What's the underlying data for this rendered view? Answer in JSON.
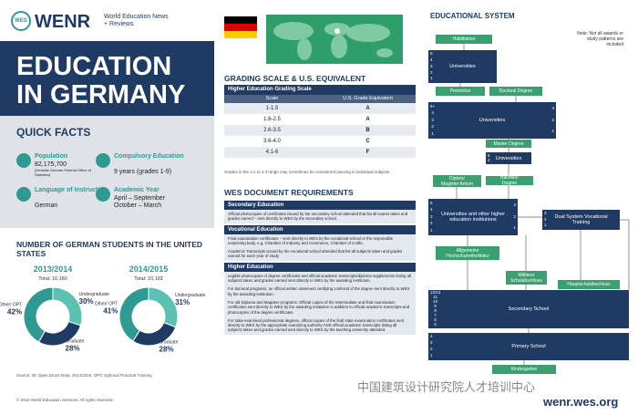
{
  "header": {
    "logo_mark": "WES",
    "brand": "WENR",
    "tagline": "World Education News + Reviews"
  },
  "title": "EDUCATION IN GERMANY",
  "quick_facts": {
    "heading": "QUICK FACTS",
    "items": [
      {
        "label": "Population",
        "lines": [
          "82,175,700",
          "(Destatis German Federal Office of Statistics)"
        ]
      },
      {
        "label": "Compulsory Education",
        "lines": [
          "9 years (grades 1-9)"
        ]
      },
      {
        "label": "Language of Instruction",
        "lines": [
          "German"
        ]
      },
      {
        "label": "Academic Year",
        "lines": [
          "April – September",
          "October – March"
        ]
      }
    ]
  },
  "students": {
    "heading": "NUMBER OF GERMAN STUDENTS IN THE UNITED STATES",
    "charts": [
      {
        "year": "2013/2014",
        "total": "Total: 10,160",
        "segments": [
          {
            "name": "Undergraduate",
            "value": 30,
            "value_label": "30%",
            "color": "#5cc0b3"
          },
          {
            "name": "Graduate",
            "value": 28,
            "value_label": "28%",
            "color": "#1f3b63"
          },
          {
            "name": "Other/ OPT",
            "value": 42,
            "value_label": "42%",
            "color": "#2e9a92"
          }
        ]
      },
      {
        "year": "2014/2015",
        "total": "Total: 10,193",
        "segments": [
          {
            "name": "Undergraduate",
            "value": 31,
            "value_label": "31%",
            "color": "#5cc0b3"
          },
          {
            "name": "Graduate",
            "value": 28,
            "value_label": "28%",
            "color": "#1f3b63"
          },
          {
            "name": "Other/ OPT",
            "value": 41,
            "value_label": "41%",
            "color": "#2e9a92"
          }
        ]
      }
    ],
    "source": "Source: IIE Open Doors Data, 2014/2015. OPT: Optional Practical Training"
  },
  "grading": {
    "heading": "GRADING SCALE & U.S. EQUIVALENT",
    "table_title": "Higher Education Grading Scale",
    "columns": [
      "Scale",
      "U.S. Grade Equivalent"
    ],
    "rows": [
      [
        "1-1.5",
        "A"
      ],
      [
        "1.6-2.5",
        "A"
      ],
      [
        "2.6-3.5",
        "B"
      ],
      [
        "3.6-4.0",
        "C"
      ],
      [
        "4.1-6",
        "F"
      ]
    ],
    "note": "Grades in the 4.1 to 4.3 range may sometimes be considered passing in individual subjects"
  },
  "documents": {
    "heading": "WES DOCUMENT REQUIREMENTS",
    "sections": [
      {
        "title": "Secondary Education",
        "paragraphs": [
          "Official photocopies of certificates issued by the secondary school attended that list all exams taken and grades earned – sent directly to WES by the secondary school."
        ]
      },
      {
        "title": "Vocational Education",
        "paragraphs": [
          "Final examination certificates – sent directly to WES by the vocational school or the responsible examining body, e.g. Chamber of Industry and Commerce, Chamber of Crafts.",
          "Academic Transcripts issued by the vocational school attended that list all subjects taken and grades earned for each year of study"
        ]
      },
      {
        "title": "Higher Education",
        "paragraphs": [
          "Legible photocopies of degree certificates and official academic transcripts/diploma supplements listing all subjects taken and grades earned sent directly to WES by the awarding institution.",
          "For doctoral programs, an official written statement certifying conferral of the degree sent directly to WES by the awarding institution.",
          "For old Diploma and Magister programs: Official copies of the Intermediate and final examination certificates sent directly to WES by the awarding institution in addition to official academic transcripts and photocopies of the degree certificates.",
          "For state-examined professional degrees, official copies of the final state examination certificates sent directly to WES by the appropriate examining authority AND official academic transcripts listing all subjects taken and grades earned sent directly to WES by the teaching university attended."
        ]
      }
    ]
  },
  "system": {
    "heading": "EDUCATIONAL SYSTEM",
    "note": "Note: Not all awards or study patterns are included",
    "nodes": [
      {
        "label": "Habilitation"
      },
      {
        "label": "Universities",
        "years": [
          "5",
          "4",
          "3",
          "2",
          "1"
        ]
      },
      {
        "label": "Promotion"
      },
      {
        "label": "Doctoral Degree"
      },
      {
        "label": "Universities",
        "years": [
          "5+",
          "4",
          "3",
          "2",
          "1"
        ],
        "years_right": [
          "3",
          "2",
          "1"
        ]
      },
      {
        "label": "Master Degree"
      },
      {
        "label": "Universities",
        "years": [
          "5",
          "4"
        ]
      },
      {
        "label": "Bachelor Degree"
      },
      {
        "label": "Diplom/ Magister Artium"
      },
      {
        "label": "Universities and other higher education institutions",
        "years": [
          "5",
          "4",
          "3",
          "2",
          "1"
        ],
        "years_right": [
          "3",
          "2",
          "1"
        ]
      },
      {
        "label": "Dual System Vocational Training",
        "years": [
          "3",
          "2",
          "1"
        ]
      },
      {
        "label": "Allgemeine Hochschulreife/Abitur"
      },
      {
        "label": "Mittlerer Schulabschluss"
      },
      {
        "label": "Hauptschulabschluss"
      },
      {
        "label": "Secondary School",
        "years": [
          "12/13",
          "11",
          "10",
          "9",
          "8",
          "7",
          "6",
          "5"
        ]
      },
      {
        "label": "Primary School",
        "years": [
          "4",
          "3",
          "2",
          "1"
        ]
      },
      {
        "label": "Kindergarten"
      }
    ]
  },
  "footer": {
    "copyright": "© 2016 World Education Services. All rights reserved.",
    "watermark": "中国建筑设计研究院人才培训中心",
    "url": "wenr.wes.org"
  }
}
